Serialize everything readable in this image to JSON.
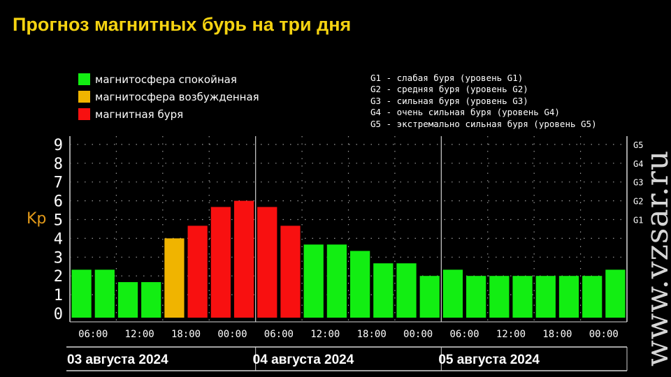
{
  "title": "Прогноз магнитных бурь на три дня",
  "legend": {
    "items": [
      {
        "label": "магнитосфера спокойная",
        "color": "#12ee12"
      },
      {
        "label": "магнитосфера возбужденная",
        "color": "#f0b400"
      },
      {
        "label": "магнитная буря",
        "color": "#f81010"
      }
    ],
    "g_levels": [
      "G1 - слабая буря (уровень G1)",
      "G2 - средняя буря (уровень G2)",
      "G3 - сильная буря (уровень G3)",
      "G4 - очень сильная буря (уровень G4)",
      "G5 - экстремально сильная буря (уровень G5)"
    ]
  },
  "watermark": "www.vzsar.ru",
  "chart_data": {
    "type": "bar",
    "ylabel": "Kp",
    "ylim": [
      0,
      9.5
    ],
    "yticks": [
      0,
      1,
      2,
      3,
      4,
      5,
      6,
      7,
      8,
      9
    ],
    "right_ticks": [
      {
        "label": "G1",
        "value": 5
      },
      {
        "label": "G2",
        "value": 6
      },
      {
        "label": "G3",
        "value": 7
      },
      {
        "label": "G4",
        "value": 8
      },
      {
        "label": "G5",
        "value": 9
      }
    ],
    "x_tick_labels": [
      "06:00",
      "12:00",
      "18:00",
      "00:00",
      "06:00",
      "12:00",
      "18:00",
      "00:00",
      "06:00",
      "12:00",
      "18:00",
      "00:00"
    ],
    "days": [
      "03 августа 2024",
      "04 августа 2024",
      "05 августа 2024"
    ],
    "colors": {
      "quiet": "#12ee12",
      "active": "#f0b400",
      "storm": "#f81010"
    },
    "values": [
      2.33,
      2.33,
      1.67,
      1.67,
      4.0,
      4.67,
      5.67,
      6.0,
      5.67,
      4.67,
      3.67,
      3.67,
      3.33,
      2.67,
      2.67,
      2.0,
      2.33,
      2.0,
      2.0,
      2.0,
      2.0,
      2.0,
      2.0,
      2.33
    ],
    "levels": [
      "quiet",
      "quiet",
      "quiet",
      "quiet",
      "active",
      "storm",
      "storm",
      "storm",
      "storm",
      "storm",
      "quiet",
      "quiet",
      "quiet",
      "quiet",
      "quiet",
      "quiet",
      "quiet",
      "quiet",
      "quiet",
      "quiet",
      "quiet",
      "quiet",
      "quiet",
      "quiet"
    ],
    "grid": true
  }
}
